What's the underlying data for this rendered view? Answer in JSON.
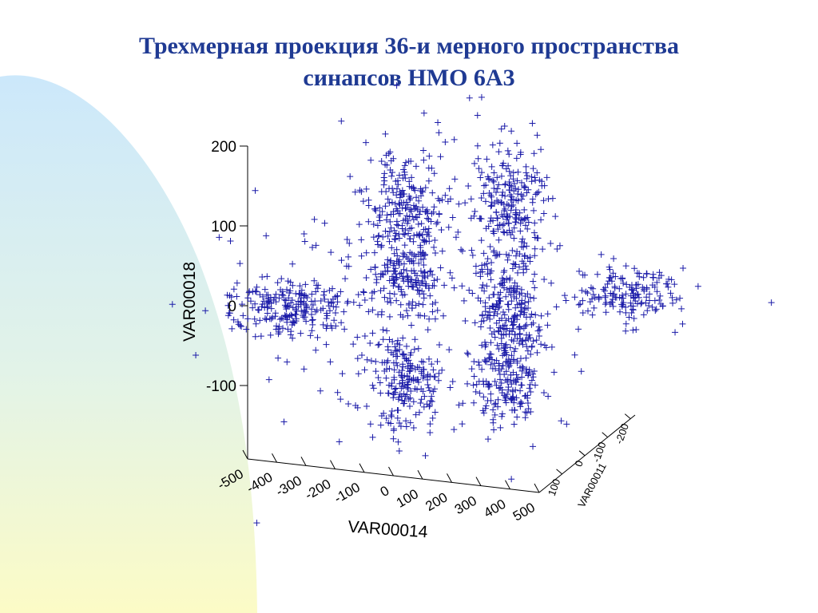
{
  "slide": {
    "title_line1": "Трехмерная проекция 36-и мерного пространства",
    "title_line2": "синапсов НМО 6А3"
  },
  "colors": {
    "title": "#1f3a93",
    "points": "#1a1aa8",
    "axis": "#000000",
    "background_gradient_top": "#cfe9fb",
    "background_gradient_bottom": "#fbfbc8"
  },
  "chart_data": {
    "type": "scatter",
    "projection": "3d",
    "marker": "plus",
    "title": "",
    "xlabel": "VAR00014",
    "ylabel": "VAR00018",
    "zlabel": "VAR00011",
    "xlim": [
      -500,
      500
    ],
    "ylim": [
      -150,
      200
    ],
    "zlim": [
      -200,
      100
    ],
    "x_ticks": [
      "-500",
      "-400",
      "-300",
      "-200",
      "-100",
      "0",
      "100",
      "200",
      "300",
      "400",
      "500"
    ],
    "y_ticks": [
      "200",
      "100",
      "0",
      "-100"
    ],
    "z_ticks": [
      "100",
      "0",
      "-100",
      "-200"
    ],
    "clusters": [
      {
        "x": -310,
        "y": 0,
        "z": -40,
        "n": 230
      },
      {
        "x": -90,
        "y": 125,
        "z": -40,
        "n": 220
      },
      {
        "x": 110,
        "y": 130,
        "z": -40,
        "n": 220
      },
      {
        "x": -90,
        "y": 40,
        "z": -40,
        "n": 150
      },
      {
        "x": 110,
        "y": 0,
        "z": -40,
        "n": 230
      },
      {
        "x": -90,
        "y": -85,
        "z": -40,
        "n": 200
      },
      {
        "x": 110,
        "y": -90,
        "z": -40,
        "n": 200
      },
      {
        "x": 350,
        "y": 15,
        "z": -40,
        "n": 170
      }
    ]
  }
}
